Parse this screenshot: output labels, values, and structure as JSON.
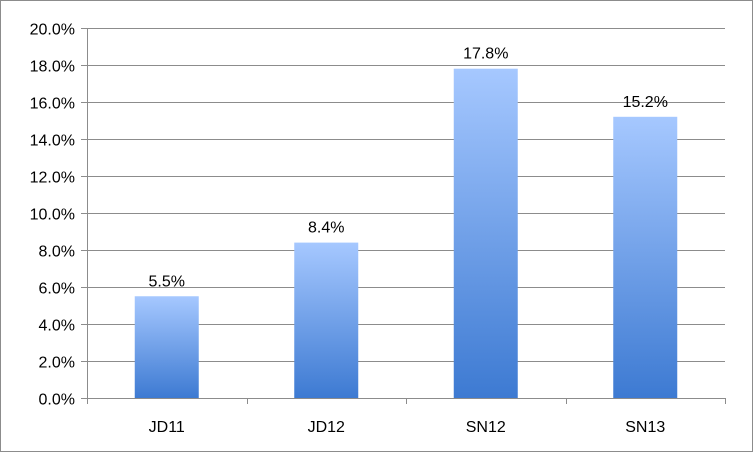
{
  "chart_data": {
    "type": "bar",
    "title": "",
    "xlabel": "",
    "ylabel": "",
    "categories": [
      "JD11",
      "JD12",
      "SN12",
      "SN13"
    ],
    "values": [
      5.5,
      8.4,
      17.8,
      15.2
    ],
    "data_labels": [
      "5.5%",
      "8.4%",
      "17.8%",
      "15.2%"
    ],
    "ylim": [
      0,
      20
    ],
    "y_ticks": [
      0,
      2,
      4,
      6,
      8,
      10,
      12,
      14,
      16,
      18,
      20
    ],
    "y_tick_labels": [
      "0.0%",
      "2.0%",
      "4.0%",
      "6.0%",
      "8.0%",
      "10.0%",
      "12.0%",
      "14.0%",
      "16.0%",
      "18.0%",
      "20.0%"
    ],
    "grid": true,
    "legend": "none",
    "colors": {
      "bar_top": "#a6c8ff",
      "bar_bottom": "#3d7ad2",
      "grid": "#8c8c8c",
      "axis": "#8c8c8c"
    }
  }
}
